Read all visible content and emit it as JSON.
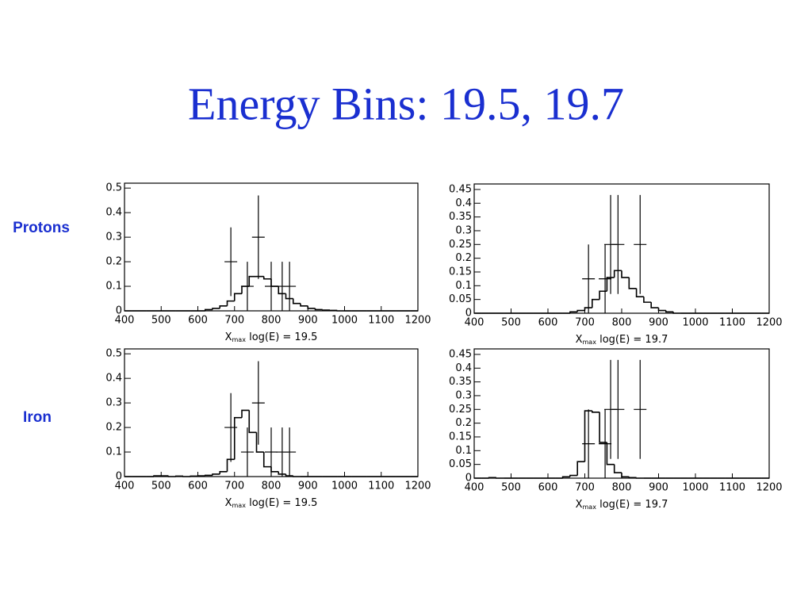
{
  "title": "Energy Bins:  19.5, 19.7",
  "row_labels": [
    "Protons",
    "Iron"
  ],
  "chart_data": [
    {
      "type": "histogram",
      "xlabel": {
        "main": "X",
        "sub": "max",
        "rest": " log(E) = 19.5"
      },
      "bins": [
        400,
        420,
        440,
        460,
        480,
        500,
        520,
        540,
        560,
        580,
        600,
        620,
        640,
        660,
        680,
        700,
        720,
        740,
        760,
        780,
        800,
        820,
        840,
        860,
        880,
        900,
        920,
        940,
        960,
        980,
        1000,
        1020,
        1040,
        1060,
        1080,
        1100,
        1120,
        1140,
        1160,
        1180,
        1200
      ],
      "counts": [
        0,
        0,
        0,
        0,
        0,
        0,
        0,
        0,
        0,
        0,
        0,
        0.005,
        0.01,
        0.02,
        0.04,
        0.07,
        0.1,
        0.14,
        0.14,
        0.13,
        0.1,
        0.07,
        0.05,
        0.03,
        0.02,
        0.01,
        0.005,
        0.003,
        0.002,
        0,
        0,
        0,
        0,
        0,
        0,
        0,
        0,
        0,
        0,
        0
      ],
      "points": {
        "x": [
          690,
          735,
          765,
          800,
          830,
          850
        ],
        "values": [
          0.2,
          0.1,
          0.3,
          0.1,
          0.1,
          0.1
        ],
        "errors": [
          0.14,
          0.1,
          0.17,
          0.1,
          0.1,
          0.1
        ]
      },
      "color": "#000000",
      "xlim": [
        400,
        1200
      ],
      "xticks": [
        400,
        500,
        600,
        700,
        800,
        900,
        1000,
        1100,
        1200
      ],
      "ylim": [
        0,
        0.52
      ],
      "yticks": [
        0,
        0.1,
        0.2,
        0.3,
        0.4,
        0.5
      ]
    },
    {
      "type": "histogram",
      "xlabel": {
        "main": "X",
        "sub": "max",
        "rest": " log(E) = 19.7"
      },
      "bins": [
        400,
        420,
        440,
        460,
        480,
        500,
        520,
        540,
        560,
        580,
        600,
        620,
        640,
        660,
        680,
        700,
        720,
        740,
        760,
        780,
        800,
        820,
        840,
        860,
        880,
        900,
        920,
        940,
        960,
        980,
        1000,
        1020,
        1040,
        1060,
        1080,
        1100,
        1120,
        1140,
        1160,
        1180,
        1200
      ],
      "counts": [
        0,
        0,
        0,
        0,
        0,
        0,
        0,
        0,
        0,
        0,
        0,
        0,
        0,
        0.005,
        0.01,
        0.02,
        0.05,
        0.08,
        0.13,
        0.155,
        0.13,
        0.09,
        0.06,
        0.04,
        0.02,
        0.01,
        0.005,
        0,
        0,
        0,
        0,
        0,
        0,
        0,
        0,
        0,
        0,
        0,
        0,
        0
      ],
      "points": {
        "x": [
          710,
          755,
          770,
          790,
          850
        ],
        "values": [
          0.125,
          0.125,
          0.25,
          0.25,
          0.25
        ],
        "errors": [
          0.125,
          0.125,
          0.18,
          0.18,
          0.18
        ]
      },
      "color": "#000000",
      "xlim": [
        400,
        1200
      ],
      "xticks": [
        400,
        500,
        600,
        700,
        800,
        900,
        1000,
        1100,
        1200
      ],
      "ylim": [
        0,
        0.47
      ],
      "yticks": [
        0,
        0.05,
        0.1,
        0.15,
        0.2,
        0.25,
        0.3,
        0.35,
        0.4,
        0.45
      ]
    },
    {
      "type": "histogram",
      "xlabel": {
        "main": "X",
        "sub": "max",
        "rest": " log(E) = 19.5"
      },
      "bins": [
        400,
        420,
        440,
        460,
        480,
        500,
        520,
        540,
        560,
        580,
        600,
        620,
        640,
        660,
        680,
        700,
        720,
        740,
        760,
        780,
        800,
        820,
        840,
        860,
        880,
        900,
        920,
        940,
        960,
        980,
        1000,
        1020,
        1040,
        1060,
        1080,
        1100,
        1120,
        1140,
        1160,
        1180,
        1200
      ],
      "counts": [
        0,
        0,
        0,
        0,
        0.003,
        0.003,
        0,
        0.002,
        0,
        0.002,
        0.003,
        0.005,
        0.01,
        0.02,
        0.07,
        0.24,
        0.27,
        0.18,
        0.1,
        0.04,
        0.02,
        0.01,
        0.003,
        0,
        0,
        0,
        0,
        0,
        0,
        0,
        0,
        0,
        0,
        0,
        0,
        0,
        0,
        0,
        0,
        0
      ],
      "points": {
        "x": [
          690,
          735,
          765,
          800,
          830,
          850
        ],
        "values": [
          0.2,
          0.1,
          0.3,
          0.1,
          0.1,
          0.1
        ],
        "errors": [
          0.14,
          0.1,
          0.17,
          0.1,
          0.1,
          0.1
        ]
      },
      "color": "#000000",
      "xlim": [
        400,
        1200
      ],
      "xticks": [
        400,
        500,
        600,
        700,
        800,
        900,
        1000,
        1100,
        1200
      ],
      "ylim": [
        0,
        0.52
      ],
      "yticks": [
        0,
        0.1,
        0.2,
        0.3,
        0.4,
        0.5
      ]
    },
    {
      "type": "histogram",
      "xlabel": {
        "main": "X",
        "sub": "max",
        "rest": " log(E) = 19.7"
      },
      "bins": [
        400,
        420,
        440,
        460,
        480,
        500,
        520,
        540,
        560,
        580,
        600,
        620,
        640,
        660,
        680,
        700,
        720,
        740,
        760,
        780,
        800,
        820,
        840,
        860,
        880,
        900,
        920,
        940,
        960,
        980,
        1000,
        1020,
        1040,
        1060,
        1080,
        1100,
        1120,
        1140,
        1160,
        1180,
        1200
      ],
      "counts": [
        0,
        0,
        0.002,
        0,
        0,
        0,
        0,
        0,
        0,
        0,
        0,
        0,
        0.005,
        0.01,
        0.06,
        0.245,
        0.24,
        0.13,
        0.05,
        0.02,
        0.005,
        0.002,
        0,
        0,
        0,
        0,
        0,
        0,
        0,
        0,
        0,
        0,
        0,
        0,
        0,
        0,
        0,
        0,
        0,
        0
      ],
      "points": {
        "x": [
          710,
          755,
          770,
          790,
          850
        ],
        "values": [
          0.125,
          0.125,
          0.25,
          0.25,
          0.25
        ],
        "errors": [
          0.125,
          0.125,
          0.18,
          0.18,
          0.18
        ]
      },
      "color": "#000000",
      "xlim": [
        400,
        1200
      ],
      "xticks": [
        400,
        500,
        600,
        700,
        800,
        900,
        1000,
        1100,
        1200
      ],
      "ylim": [
        0,
        0.47
      ],
      "yticks": [
        0,
        0.05,
        0.1,
        0.15,
        0.2,
        0.25,
        0.3,
        0.35,
        0.4,
        0.45
      ]
    }
  ]
}
